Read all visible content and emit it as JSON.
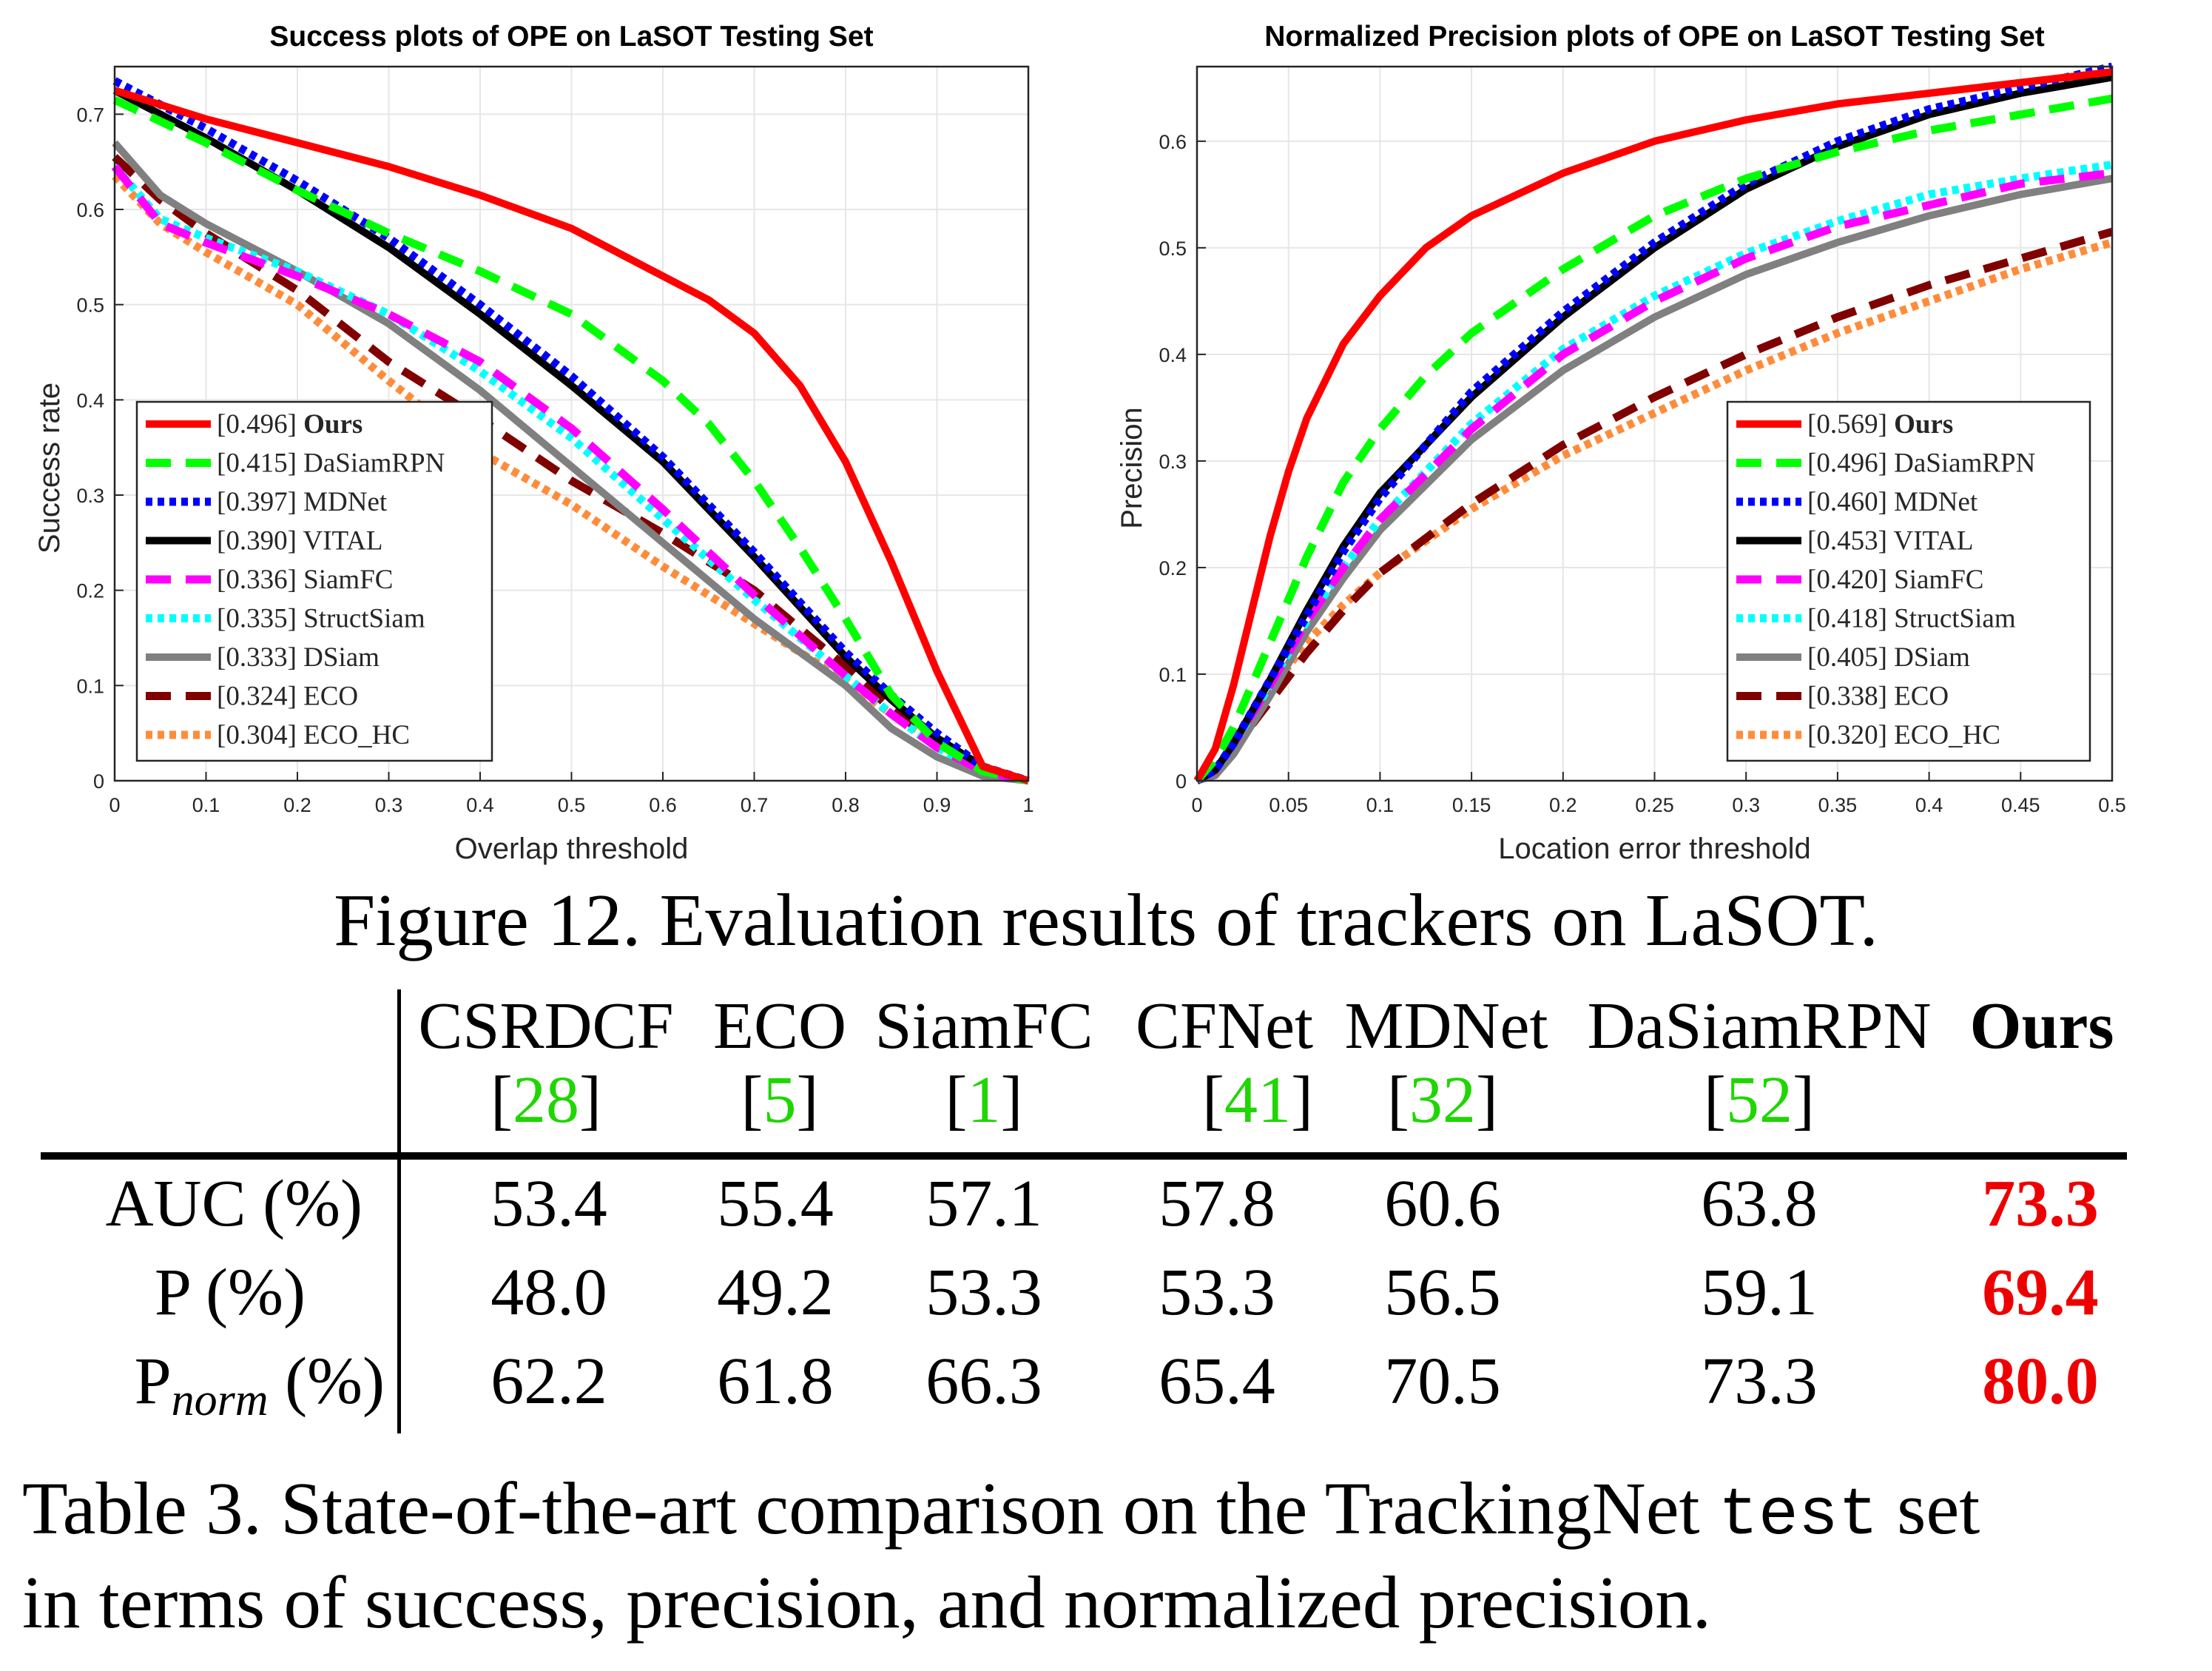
{
  "chart_data": [
    {
      "type": "line",
      "title": "Success plots of OPE on LaSOT Testing Set",
      "xlabel": "Overlap threshold",
      "ylabel": "Success rate",
      "xlim": [
        0,
        1
      ],
      "ylim": [
        0,
        0.75
      ],
      "xticks": [
        "0",
        "0.1",
        "0.2",
        "0.3",
        "0.4",
        "0.5",
        "0.6",
        "0.7",
        "0.8",
        "0.9",
        "1"
      ],
      "yticks": [
        "0",
        "0.1",
        "0.2",
        "0.3",
        "0.4",
        "0.5",
        "0.6",
        "0.7"
      ],
      "grid": true,
      "legend_position": "bottom-left",
      "series": [
        {
          "name": "Ours",
          "score": "[0.496]",
          "color": "#ff0000",
          "style": "solid",
          "x": [
            0,
            0.05,
            0.1,
            0.2,
            0.3,
            0.4,
            0.5,
            0.55,
            0.6,
            0.65,
            0.7,
            0.75,
            0.8,
            0.85,
            0.9,
            0.95,
            1
          ],
          "y": [
            0.725,
            0.71,
            0.695,
            0.67,
            0.645,
            0.615,
            0.58,
            0.555,
            0.53,
            0.505,
            0.47,
            0.415,
            0.335,
            0.23,
            0.115,
            0.015,
            0
          ]
        },
        {
          "name": "DaSiamRPN",
          "score": "[0.415]",
          "color": "#00ff00",
          "style": "dashed",
          "x": [
            0,
            0.1,
            0.2,
            0.3,
            0.4,
            0.5,
            0.6,
            0.65,
            0.7,
            0.75,
            0.8,
            0.85,
            0.9,
            0.95,
            1
          ],
          "y": [
            0.715,
            0.67,
            0.62,
            0.575,
            0.535,
            0.49,
            0.42,
            0.375,
            0.315,
            0.245,
            0.17,
            0.09,
            0.04,
            0.01,
            0
          ]
        },
        {
          "name": "MDNet",
          "score": "[0.397]",
          "color": "#0000ff",
          "style": "dotted",
          "x": [
            0,
            0.1,
            0.2,
            0.3,
            0.4,
            0.5,
            0.6,
            0.7,
            0.8,
            0.85,
            0.9,
            0.95,
            1
          ],
          "y": [
            0.735,
            0.685,
            0.63,
            0.57,
            0.5,
            0.425,
            0.34,
            0.24,
            0.135,
            0.09,
            0.05,
            0.015,
            0
          ]
        },
        {
          "name": "VITAL",
          "score": "[0.390]",
          "color": "#000000",
          "style": "solid",
          "x": [
            0,
            0.1,
            0.2,
            0.3,
            0.4,
            0.5,
            0.6,
            0.7,
            0.8,
            0.85,
            0.9,
            0.95,
            1
          ],
          "y": [
            0.725,
            0.675,
            0.62,
            0.56,
            0.49,
            0.415,
            0.335,
            0.235,
            0.13,
            0.085,
            0.045,
            0.015,
            0
          ]
        },
        {
          "name": "SiamFC",
          "score": "[0.336]",
          "color": "#ff00ff",
          "style": "dashed",
          "x": [
            0,
            0.05,
            0.1,
            0.2,
            0.3,
            0.4,
            0.5,
            0.6,
            0.7,
            0.8,
            0.85,
            0.9,
            0.95,
            1
          ],
          "y": [
            0.645,
            0.585,
            0.565,
            0.53,
            0.49,
            0.44,
            0.37,
            0.285,
            0.195,
            0.11,
            0.07,
            0.035,
            0.01,
            0
          ]
        },
        {
          "name": "StructSiam",
          "score": "[0.335]",
          "color": "#00ffff",
          "style": "dotted",
          "x": [
            0,
            0.05,
            0.1,
            0.2,
            0.3,
            0.4,
            0.5,
            0.6,
            0.7,
            0.8,
            0.85,
            0.9,
            0.95,
            1
          ],
          "y": [
            0.645,
            0.59,
            0.57,
            0.535,
            0.49,
            0.43,
            0.36,
            0.275,
            0.19,
            0.11,
            0.07,
            0.035,
            0.01,
            0
          ]
        },
        {
          "name": "DSiam",
          "score": "[0.333]",
          "color": "#808080",
          "style": "solid",
          "x": [
            0,
            0.05,
            0.1,
            0.2,
            0.3,
            0.4,
            0.5,
            0.6,
            0.7,
            0.8,
            0.85,
            0.9,
            0.95,
            1
          ],
          "y": [
            0.67,
            0.615,
            0.585,
            0.535,
            0.48,
            0.41,
            0.33,
            0.25,
            0.17,
            0.1,
            0.055,
            0.025,
            0.005,
            0
          ]
        },
        {
          "name": "ECO",
          "score": "[0.324]",
          "color": "#800000",
          "style": "dashed",
          "x": [
            0,
            0.05,
            0.1,
            0.2,
            0.3,
            0.4,
            0.5,
            0.6,
            0.7,
            0.8,
            0.85,
            0.9,
            0.95,
            1
          ],
          "y": [
            0.655,
            0.61,
            0.575,
            0.515,
            0.44,
            0.38,
            0.315,
            0.26,
            0.2,
            0.12,
            0.075,
            0.04,
            0.01,
            0
          ]
        },
        {
          "name": "ECO_HC",
          "score": "[0.304]",
          "color": "#ff8c3a",
          "style": "dotted",
          "x": [
            0,
            0.05,
            0.1,
            0.2,
            0.3,
            0.4,
            0.5,
            0.6,
            0.7,
            0.8,
            0.85,
            0.9,
            0.95,
            1
          ],
          "y": [
            0.635,
            0.585,
            0.555,
            0.5,
            0.42,
            0.345,
            0.29,
            0.225,
            0.165,
            0.105,
            0.07,
            0.04,
            0.01,
            0
          ]
        }
      ]
    },
    {
      "type": "line",
      "title": "Normalized Precision plots of OPE on LaSOT Testing Set",
      "xlabel": "Location error threshold",
      "ylabel": "Precision",
      "xlim": [
        0,
        0.5
      ],
      "ylim": [
        0,
        0.67
      ],
      "xticks": [
        "0",
        "0.05",
        "0.1",
        "0.15",
        "0.2",
        "0.25",
        "0.3",
        "0.35",
        "0.4",
        "0.45",
        "0.5"
      ],
      "yticks": [
        "0",
        "0.1",
        "0.2",
        "0.3",
        "0.4",
        "0.5",
        "0.6"
      ],
      "grid": true,
      "legend_position": "bottom-right",
      "series": [
        {
          "name": "Ours",
          "score": "[0.569]",
          "color": "#ff0000",
          "style": "solid",
          "x": [
            0,
            0.01,
            0.02,
            0.03,
            0.04,
            0.05,
            0.06,
            0.08,
            0.1,
            0.125,
            0.15,
            0.2,
            0.25,
            0.3,
            0.35,
            0.4,
            0.45,
            0.5
          ],
          "y": [
            0,
            0.03,
            0.09,
            0.16,
            0.23,
            0.29,
            0.34,
            0.41,
            0.455,
            0.5,
            0.53,
            0.57,
            0.6,
            0.62,
            0.635,
            0.645,
            0.655,
            0.665
          ]
        },
        {
          "name": "DaSiamRPN",
          "score": "[0.496]",
          "color": "#00ff00",
          "style": "dashed",
          "x": [
            0,
            0.01,
            0.02,
            0.04,
            0.06,
            0.08,
            0.1,
            0.125,
            0.15,
            0.2,
            0.25,
            0.3,
            0.35,
            0.4,
            0.45,
            0.5
          ],
          "y": [
            0,
            0.02,
            0.05,
            0.13,
            0.21,
            0.28,
            0.33,
            0.38,
            0.42,
            0.48,
            0.53,
            0.565,
            0.59,
            0.61,
            0.625,
            0.64
          ]
        },
        {
          "name": "MDNet",
          "score": "[0.460]",
          "color": "#0000ff",
          "style": "dotted",
          "x": [
            0,
            0.01,
            0.02,
            0.04,
            0.06,
            0.08,
            0.1,
            0.15,
            0.2,
            0.25,
            0.3,
            0.35,
            0.4,
            0.45,
            0.5
          ],
          "y": [
            0,
            0.01,
            0.035,
            0.095,
            0.155,
            0.215,
            0.265,
            0.365,
            0.44,
            0.505,
            0.56,
            0.6,
            0.63,
            0.65,
            0.67
          ]
        },
        {
          "name": "VITAL",
          "score": "[0.453]",
          "color": "#000000",
          "style": "solid",
          "x": [
            0,
            0.01,
            0.02,
            0.04,
            0.06,
            0.08,
            0.1,
            0.15,
            0.2,
            0.25,
            0.3,
            0.35,
            0.4,
            0.45,
            0.5
          ],
          "y": [
            0,
            0.01,
            0.035,
            0.095,
            0.16,
            0.22,
            0.27,
            0.36,
            0.435,
            0.5,
            0.555,
            0.595,
            0.625,
            0.645,
            0.66
          ]
        },
        {
          "name": "SiamFC",
          "score": "[0.420]",
          "color": "#ff00ff",
          "style": "dashed",
          "x": [
            0,
            0.01,
            0.02,
            0.04,
            0.06,
            0.08,
            0.1,
            0.15,
            0.2,
            0.25,
            0.3,
            0.35,
            0.4,
            0.45,
            0.5
          ],
          "y": [
            0,
            0.01,
            0.035,
            0.09,
            0.15,
            0.2,
            0.245,
            0.33,
            0.4,
            0.45,
            0.49,
            0.52,
            0.54,
            0.56,
            0.57
          ]
        },
        {
          "name": "StructSiam",
          "score": "[0.418]",
          "color": "#00ffff",
          "style": "dotted",
          "x": [
            0,
            0.01,
            0.02,
            0.04,
            0.06,
            0.08,
            0.1,
            0.15,
            0.2,
            0.25,
            0.3,
            0.35,
            0.4,
            0.45,
            0.5
          ],
          "y": [
            0,
            0.01,
            0.035,
            0.09,
            0.15,
            0.2,
            0.245,
            0.335,
            0.405,
            0.455,
            0.495,
            0.525,
            0.55,
            0.565,
            0.578
          ]
        },
        {
          "name": "DSiam",
          "score": "[0.405]",
          "color": "#808080",
          "style": "solid",
          "x": [
            0,
            0.01,
            0.02,
            0.04,
            0.06,
            0.08,
            0.1,
            0.15,
            0.2,
            0.25,
            0.3,
            0.35,
            0.4,
            0.45,
            0.5
          ],
          "y": [
            0,
            0.005,
            0.025,
            0.08,
            0.14,
            0.19,
            0.235,
            0.32,
            0.385,
            0.435,
            0.475,
            0.505,
            0.53,
            0.55,
            0.565
          ]
        },
        {
          "name": "ECO",
          "score": "[0.338]",
          "color": "#800000",
          "style": "dashed",
          "x": [
            0,
            0.01,
            0.02,
            0.04,
            0.06,
            0.08,
            0.1,
            0.15,
            0.2,
            0.25,
            0.3,
            0.35,
            0.4,
            0.45,
            0.5
          ],
          "y": [
            0,
            0.01,
            0.03,
            0.075,
            0.12,
            0.16,
            0.195,
            0.26,
            0.315,
            0.36,
            0.4,
            0.435,
            0.465,
            0.49,
            0.515
          ]
        },
        {
          "name": "ECO_HC",
          "score": "[0.320]",
          "color": "#ff8c3a",
          "style": "dotted",
          "x": [
            0,
            0.01,
            0.02,
            0.04,
            0.06,
            0.08,
            0.1,
            0.15,
            0.2,
            0.25,
            0.3,
            0.35,
            0.4,
            0.45,
            0.5
          ],
          "y": [
            0,
            0.01,
            0.035,
            0.085,
            0.13,
            0.165,
            0.195,
            0.255,
            0.305,
            0.345,
            0.385,
            0.42,
            0.45,
            0.48,
            0.505
          ]
        }
      ]
    }
  ],
  "figure_caption": "Figure 12. Evaluation results of trackers on LaSOT.",
  "table": {
    "columns": [
      {
        "name": "CSRDCF",
        "ref": "28"
      },
      {
        "name": "ECO",
        "ref": "5"
      },
      {
        "name": "SiamFC",
        "ref": "1"
      },
      {
        "name": "CFNet",
        "ref": "41"
      },
      {
        "name": "MDNet",
        "ref": "32"
      },
      {
        "name": "DaSiamRPN",
        "ref": "52"
      },
      {
        "name": "Ours",
        "ref": ""
      }
    ],
    "rows": [
      {
        "label": "AUC (%)",
        "values": [
          "53.4",
          "55.4",
          "57.1",
          "57.8",
          "60.6",
          "63.8",
          "73.3"
        ]
      },
      {
        "label": "P (%)",
        "values": [
          "48.0",
          "49.2",
          "53.3",
          "53.3",
          "56.5",
          "59.1",
          "69.4"
        ]
      },
      {
        "label_main": "P",
        "label_sub": "norm",
        "label_suffix": " (%)",
        "values": [
          "62.2",
          "61.8",
          "66.3",
          "65.4",
          "70.5",
          "73.3",
          "80.0"
        ]
      }
    ]
  },
  "table_caption": {
    "before": "Table 3. State-of-the-art comparison on the TrackingNet ",
    "code": "test",
    "after": " set",
    "line2": "in terms of success, precision, and normalized precision."
  },
  "colors": {
    "best": "#ee0000",
    "ref": "#1fd600"
  }
}
